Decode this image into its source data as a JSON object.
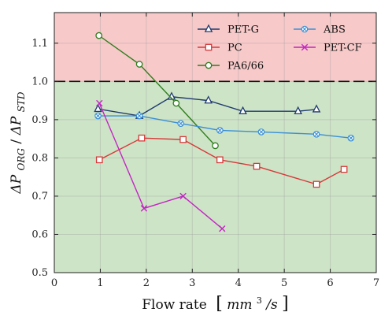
{
  "chart_data": {
    "type": "line",
    "xlabel": "Flow rate",
    "xlabel_unit_prefix": "mm",
    "xlabel_unit_exp": "3",
    "xlabel_unit_suffix": "/s",
    "ylabel_num": "ΔP",
    "ylabel_num_sub": "ORG",
    "ylabel_sep": "/",
    "ylabel_den": "ΔP",
    "ylabel_den_sub": "STD",
    "xlim": [
      0,
      7
    ],
    "ylim": [
      0.5,
      1.18
    ],
    "xticks": [
      0,
      1,
      2,
      3,
      4,
      5,
      6,
      7
    ],
    "yticks": [
      0.5,
      0.6,
      0.7,
      0.8,
      0.9,
      1.0,
      1.1
    ],
    "xtick_labels": [
      "0",
      "1",
      "2",
      "3",
      "4",
      "5",
      "6",
      "7"
    ],
    "ytick_labels": [
      "0.5",
      "0.6",
      "0.7",
      "0.8",
      "0.9",
      "1.0",
      "1.1"
    ],
    "threshold": 1.0,
    "regions": [
      {
        "from": 1.0,
        "to": 1.18,
        "color": "#f7c9c9"
      },
      {
        "from": 0.5,
        "to": 1.0,
        "color": "#cde4c7"
      }
    ],
    "grid": true,
    "legend_position": "top-right",
    "series": [
      {
        "name": "PET-G",
        "color": "#1f3a6e",
        "marker": "triangle",
        "x": [
          0.95,
          1.85,
          2.55,
          3.35,
          4.1,
          5.3,
          5.7
        ],
        "y": [
          0.928,
          0.91,
          0.96,
          0.95,
          0.922,
          0.922,
          0.927
        ]
      },
      {
        "name": "PC",
        "color": "#d63a3a",
        "marker": "square",
        "x": [
          0.98,
          1.9,
          2.8,
          3.6,
          4.4,
          5.7,
          6.3
        ],
        "y": [
          0.795,
          0.852,
          0.848,
          0.795,
          0.778,
          0.731,
          0.77
        ]
      },
      {
        "name": "PA6/66",
        "color": "#2e7d1e",
        "marker": "circle",
        "x": [
          0.97,
          1.85,
          2.65,
          3.5
        ],
        "y": [
          1.12,
          1.045,
          0.943,
          0.832
        ]
      },
      {
        "name": "ABS",
        "color": "#3a8fd6",
        "marker": "xcircle",
        "x": [
          0.95,
          1.85,
          2.75,
          3.6,
          4.5,
          5.7,
          6.45
        ],
        "y": [
          0.91,
          0.91,
          0.89,
          0.872,
          0.868,
          0.862,
          0.852
        ]
      },
      {
        "name": "PET-CF",
        "color": "#c326c3",
        "marker": "x",
        "x": [
          0.98,
          1.95,
          2.8,
          3.65
        ],
        "y": [
          0.943,
          0.668,
          0.7,
          0.615
        ]
      }
    ]
  }
}
